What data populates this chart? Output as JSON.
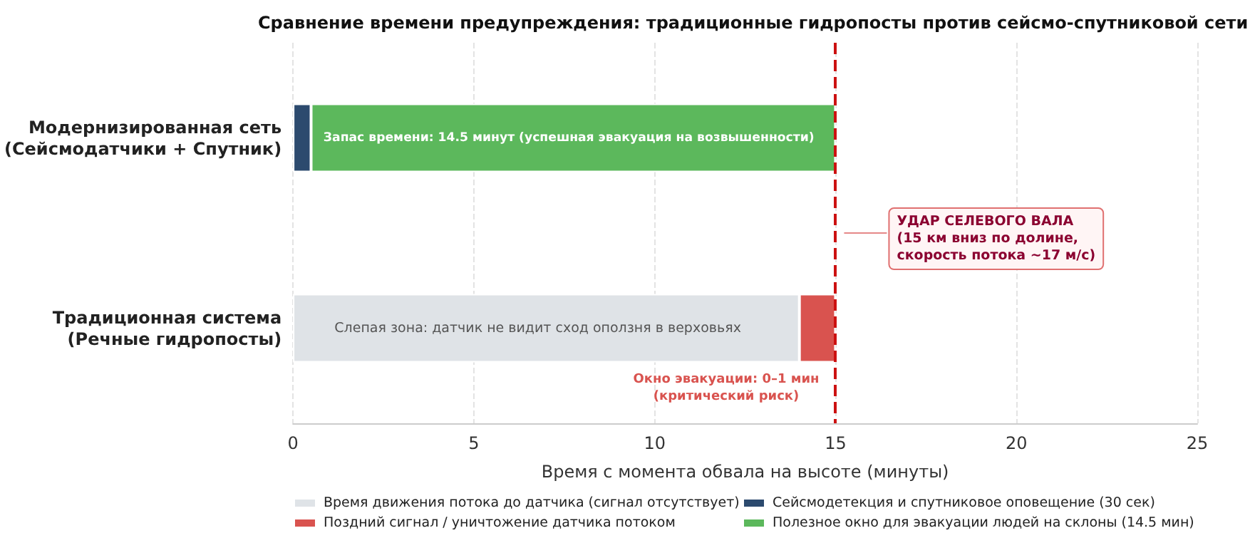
{
  "chart_data": {
    "type": "bar",
    "orientation": "horizontal",
    "stacked": true,
    "title": "Сравнение времени предупреждения: традиционные гидропосты против сейсмо-спутниковой сети",
    "xlabel": "Время с момента обвала на высоте (минуты)",
    "categories": [
      "Модернизированная сеть\n(Сейсмодатчики + Спутник)",
      "Традиционная система\n(Речные гидропосты)"
    ],
    "series": [
      {
        "name": "Время движения потока до датчика (сигнал отсутствует)",
        "color": "#dfe3e7",
        "values": [
          null,
          14
        ]
      },
      {
        "name": "Поздний сигнал / уничтожение датчика потоком",
        "color": "#d9534f",
        "values": [
          null,
          1
        ]
      },
      {
        "name": "Сейсмодетекция и спутниковое оповещение (30 сек)",
        "color": "#2c4a6e",
        "values": [
          0.5,
          null
        ]
      },
      {
        "name": "Полезное окно для эвакуации людей на склоны (14.5 мин)",
        "color": "#5cb85c",
        "values": [
          14.5,
          null
        ]
      }
    ],
    "xlim": [
      0,
      25
    ],
    "xticks": [
      0,
      5,
      10,
      15,
      20,
      25
    ],
    "grid": "x",
    "legend": "bottom",
    "ref_lines": [
      {
        "axis": "x",
        "value": 15,
        "color": "#cc1111",
        "line_style": "dashed",
        "label": "УДАР СЕЛЕВОГО ВАЛА\n(15 км вниз по долине,\nскорость потока ~17 м/с)"
      }
    ],
    "annotations": [
      "Запас времени: 14.5 минут (успешная эвакуация на возвышенности)",
      "Слепая зона: датчик не видит сход оползня в верховьях",
      "Окно эвакуации: 0–1 мин\n(критический риск)"
    ]
  }
}
